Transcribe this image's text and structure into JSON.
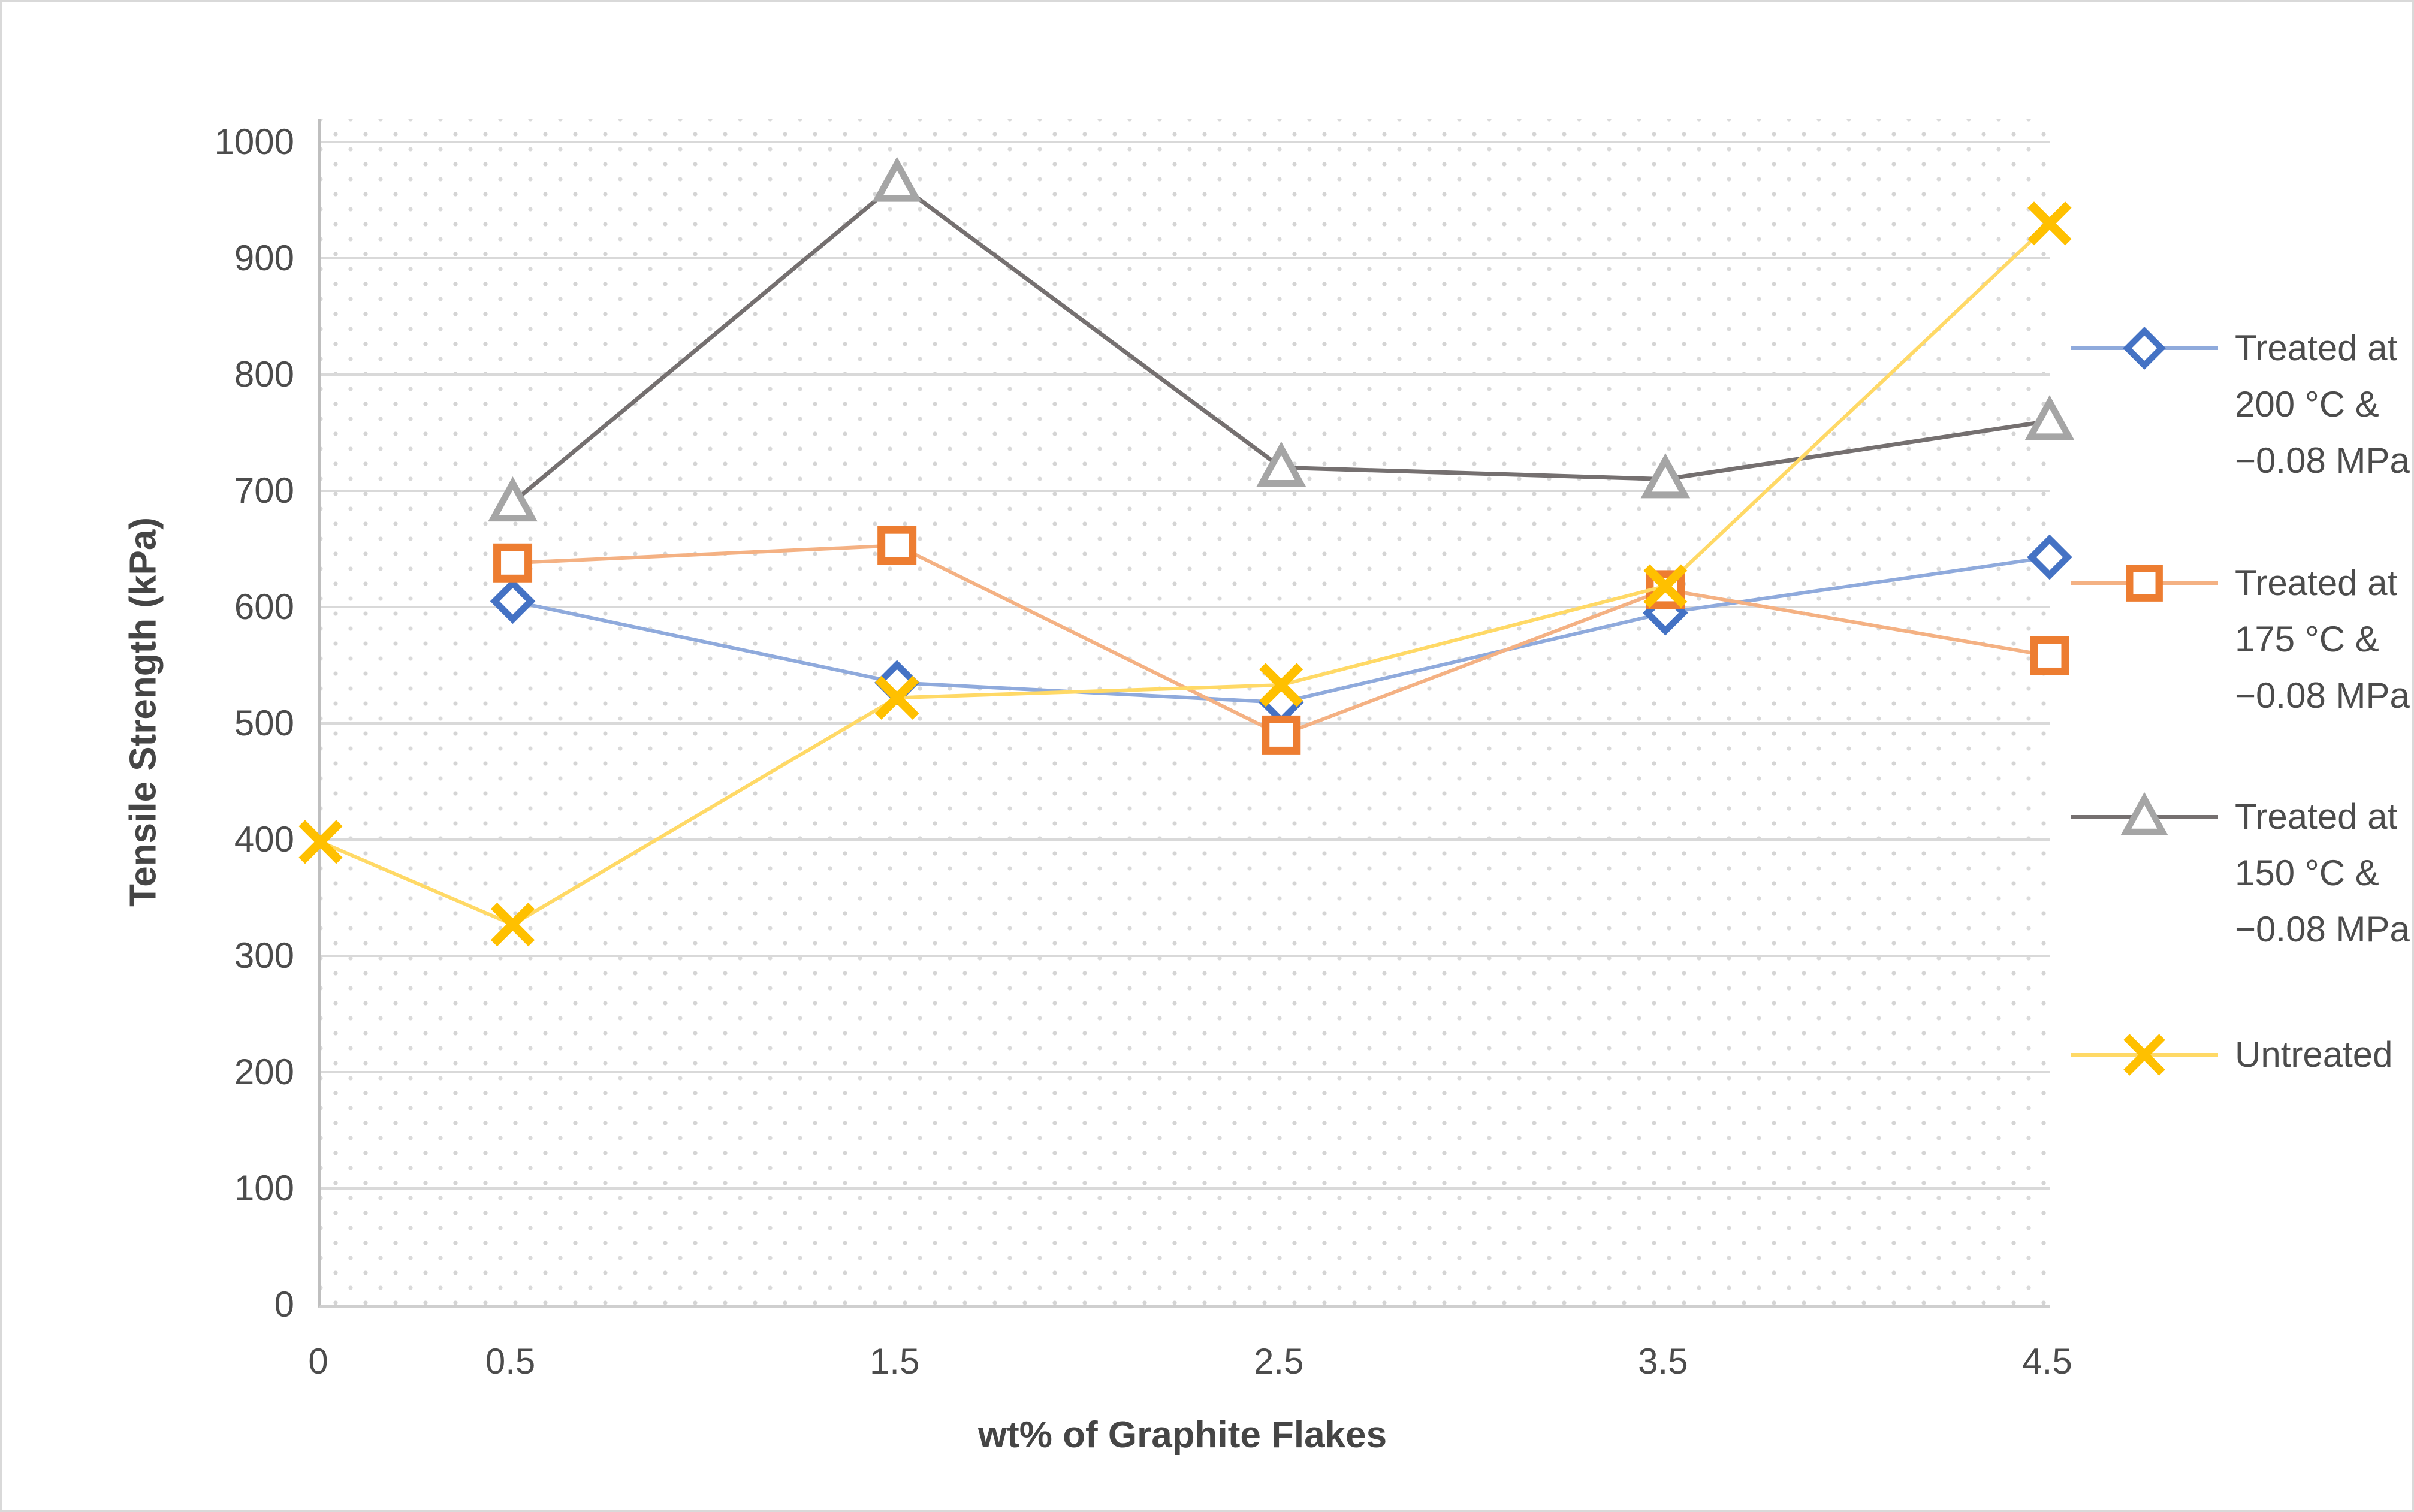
{
  "figure": {
    "background_color": "#ffffff",
    "border_color": "#d9d9d9",
    "text_color": "#4c4c4c",
    "gridline_color": "#d9d9d9",
    "axis_line_color": "#bfbfbf"
  },
  "chart_data": {
    "type": "line",
    "title": "",
    "xlabel": "wt% of Graphite Flakes",
    "ylabel": "Tensile Strength (kPa)",
    "xlim": [
      0,
      4.5
    ],
    "ylim": [
      0,
      1000
    ],
    "x_tick_labels": [
      "0",
      "0.5",
      "1.5",
      "2.5",
      "3.5",
      "4.5"
    ],
    "x_tick_values": [
      0,
      0.5,
      1.5,
      2.5,
      3.5,
      4.5
    ],
    "y_tick_step": 100,
    "y_tick_labels": [
      "0",
      "100",
      "200",
      "300",
      "400",
      "500",
      "600",
      "700",
      "800",
      "900",
      "1000"
    ],
    "grid": "horizontal",
    "plot_background": "dotted-pattern",
    "legend_position": "right",
    "series": [
      {
        "name": "Treated at 200 °C & −0.08 MPa",
        "name_lines": [
          "Treated at",
          "200 °C &",
          "−0.08 MPa"
        ],
        "marker": "diamond",
        "marker_color": "#4472C4",
        "line_color": "#8FAADC",
        "x": [
          0.5,
          1.5,
          2.5,
          3.5,
          4.5
        ],
        "y": [
          605,
          535,
          518,
          595,
          643
        ]
      },
      {
        "name": "Treated at 175 °C & −0.08 MPa",
        "name_lines": [
          "Treated at",
          "175 °C &",
          "−0.08 MPa"
        ],
        "marker": "square",
        "marker_color": "#ED7D31",
        "line_color": "#F4B183",
        "x": [
          0.5,
          1.5,
          2.5,
          3.5,
          4.5
        ],
        "y": [
          638,
          653,
          490,
          615,
          558
        ]
      },
      {
        "name": "Treated at 150 °C & −0.08 MPa",
        "name_lines": [
          "Treated at",
          "150 °C &",
          "−0.08 MPa"
        ],
        "marker": "triangle",
        "marker_color": "#A5A5A5",
        "line_color": "#757070",
        "x": [
          0.5,
          1.5,
          2.5,
          3.5,
          4.5
        ],
        "y": [
          690,
          965,
          720,
          710,
          760
        ]
      },
      {
        "name": "Untreated",
        "name_lines": [
          "Untreated"
        ],
        "marker": "x",
        "marker_color": "#FFC000",
        "line_color": "#FFD966",
        "x": [
          0,
          0.5,
          1.5,
          2.5,
          3.5,
          4.5
        ],
        "y": [
          398,
          327,
          522,
          533,
          618,
          930
        ]
      }
    ],
    "legend_entry_tops": [
      530,
      922,
      1312,
      1709
    ]
  }
}
